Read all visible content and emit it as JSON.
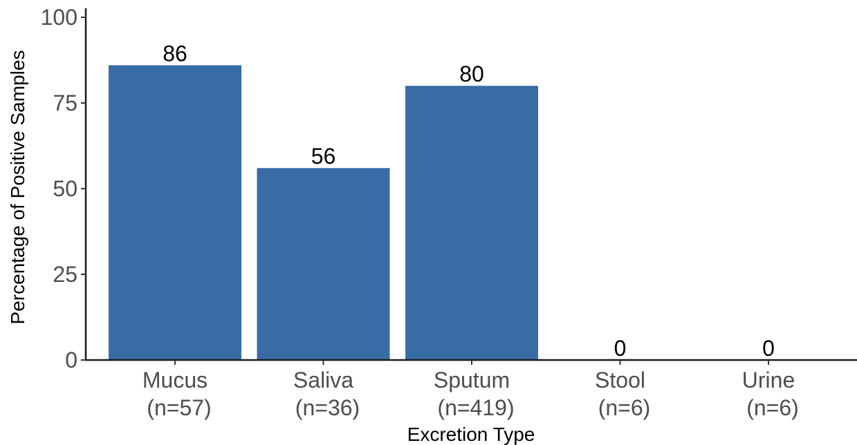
{
  "chart_data": {
    "type": "bar",
    "categories": [
      "Mucus\n(n=57)",
      "Saliva\n(n=36)",
      "Sputum\n(n=419)",
      "Stool\n(n=6)",
      "Urine\n(n=6)"
    ],
    "values": [
      86,
      56,
      80,
      0,
      0
    ],
    "data_labels": [
      "86",
      "56",
      "80",
      "0",
      "0"
    ],
    "xlabel": "Excretion Type",
    "ylabel": "Percentage of Positive Samples",
    "ylim": [
      0,
      100
    ],
    "yticks": [
      0,
      25,
      50,
      75,
      100
    ],
    "grid": false,
    "bar_color": "#386CA5"
  }
}
